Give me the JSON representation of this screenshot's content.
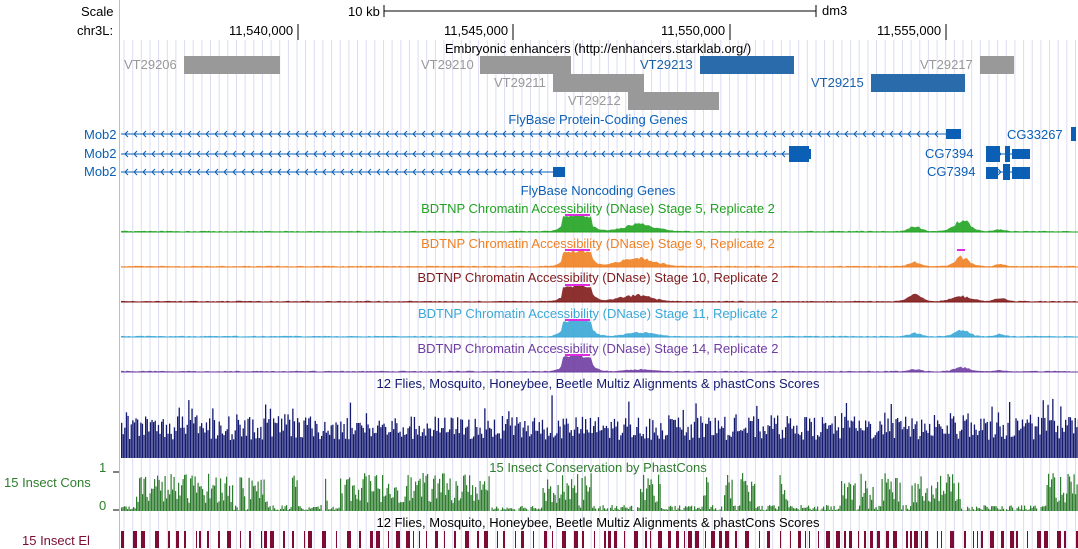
{
  "ruler": {
    "scale_label": "Scale",
    "scale_bar_label": "10 kb",
    "assembly": "dm3",
    "chrom_label": "chr3L:",
    "ticks": [
      "11,540,000",
      "11,545,000",
      "11,550,000",
      "11,555,000"
    ]
  },
  "colors": {
    "grey": "#999999",
    "blue": "#1a62a8",
    "flybase": "#0b5fb4",
    "green": "#21a321",
    "orange": "#f07f22",
    "darkred": "#7f1a1a",
    "lightblue": "#3aa7d6",
    "purple": "#6f3da1",
    "navy": "#131a70",
    "consgreen": "#2e7d2e",
    "maroon": "#7c0c33",
    "magenta": "#e02ce0"
  },
  "enhancers": {
    "track_title": "Embryonic enhancers (http://enhancers.starklab.org/)",
    "items": [
      {
        "name": "VT29206",
        "color": "grey"
      },
      {
        "name": "VT29210",
        "color": "grey"
      },
      {
        "name": "VT29211",
        "color": "grey"
      },
      {
        "name": "VT29212",
        "color": "grey"
      },
      {
        "name": "VT29213",
        "color": "blue"
      },
      {
        "name": "VT29215",
        "color": "blue"
      },
      {
        "name": "VT29217",
        "color": "grey"
      }
    ]
  },
  "genes": {
    "track_title": "FlyBase Protein-Coding Genes",
    "left_labels": [
      "Mob2",
      "Mob2",
      "Mob2"
    ],
    "right_labels": [
      "CG33267",
      "CG7394",
      "CG7394"
    ]
  },
  "noncoding": {
    "track_title": "FlyBase Noncoding Genes"
  },
  "dnase": [
    {
      "title": "BDTNP Chromatin Accessibility (DNase) Stage 5, Replicate 2",
      "color": "green"
    },
    {
      "title": "BDTNP Chromatin Accessibility (DNase) Stage 9, Replicate 2",
      "color": "orange"
    },
    {
      "title": "BDTNP Chromatin Accessibility (DNase) Stage 10, Replicate 2",
      "color": "darkred"
    },
    {
      "title": "BDTNP Chromatin Accessibility (DNase) Stage 11, Replicate 2",
      "color": "lightblue"
    },
    {
      "title": "BDTNP Chromatin Accessibility (DNase) Stage 14, Replicate 2",
      "color": "purple"
    }
  ],
  "multiz": {
    "track_title": "12 Flies, Mosquito, Honeybee, Beetle Multiz Alignments & phastCons Scores"
  },
  "conservation": {
    "side_label": "15 Insect Cons",
    "track_title": "15 Insect Conservation by PhastCons",
    "ymax": "1",
    "ymin": "0"
  },
  "elements": {
    "side_label": "15 Insect El",
    "track_title": "12 Flies, Mosquito, Honeybee, Beetle Multiz Alignments & phastCons Scores"
  }
}
